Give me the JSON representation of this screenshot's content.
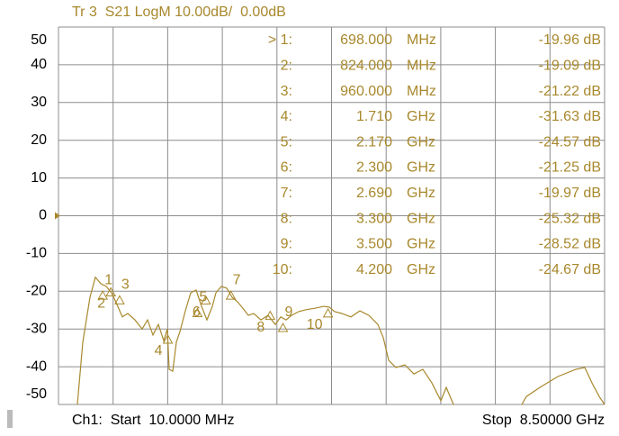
{
  "chart_data": {
    "type": "line",
    "title": "Tr 3  S21 LogM 10.00dB/  0.00dB",
    "x_start_label": "Ch1:  Start  10.0000 MHz",
    "x_stop_label": "Stop  8.50000 GHz",
    "xlim": [
      10,
      8500
    ],
    "ylim": [
      -50,
      50
    ],
    "yticks": [
      50,
      40,
      30,
      20,
      10,
      0,
      -10,
      -20,
      -30,
      -40,
      -50
    ],
    "grid": true,
    "trace": {
      "color": "#a8882c",
      "x": [
        304,
        388,
        500,
        583,
        667,
        751,
        835,
        919,
        1003,
        1087,
        1199,
        1311,
        1395,
        1479,
        1563,
        1646,
        1702,
        1730,
        1786,
        1842,
        1898,
        1982,
        2066,
        2150,
        2234,
        2318,
        2402,
        2458,
        2542,
        2626,
        2710,
        2793,
        2877,
        2961,
        3045,
        3157,
        3269,
        3381,
        3465,
        3549,
        3633,
        3745,
        3856,
        3996,
        4136,
        4220,
        4304,
        4416,
        4556,
        4696,
        4836,
        4975,
        5059,
        5143,
        5255,
        5395,
        5535,
        5675,
        5815,
        5954,
        6038,
        6150,
        null,
        7213,
        7283,
        7493,
        7773,
        8053,
        8192,
        8304,
        8416,
        8500
      ],
      "values": [
        -50,
        -33.5,
        -21.6,
        -16.3,
        -18.0,
        -18.7,
        -20.4,
        -23.5,
        -26.8,
        -25.9,
        -27.6,
        -30.0,
        -27.6,
        -31.6,
        -28.8,
        -33.1,
        -30.0,
        -40.7,
        -41.2,
        -33.5,
        -30.7,
        -25.2,
        -20.4,
        -19.7,
        -24.0,
        -27.6,
        -24.0,
        -20.4,
        -18.7,
        -19.2,
        -21.6,
        -22.8,
        -24.5,
        -26.4,
        -25.9,
        -27.6,
        -26.4,
        -28.8,
        -26.8,
        -27.6,
        -26.4,
        -25.4,
        -24.9,
        -24.5,
        -24.0,
        -24.2,
        -25.4,
        -25.9,
        -26.8,
        -25.2,
        -26.4,
        -28.8,
        -32.3,
        -38.3,
        -40.2,
        -39.5,
        -41.9,
        -40.7,
        -44.3,
        -49.0,
        -45.5,
        -50,
        null,
        -50,
        -47.9,
        -45.5,
        -42.6,
        -40.7,
        -40.2,
        -44.3,
        -47.9,
        -50
      ]
    },
    "markers": {
      "color": "#a8882c",
      "labels": [
        "1",
        "2",
        "3",
        "4",
        "5",
        "6",
        "7",
        "8",
        "9",
        "10"
      ],
      "table_labels": [
        "> 1:",
        "2:",
        "3:",
        "4:",
        "5:",
        "6:",
        "7:",
        "8:",
        "9:",
        "10:"
      ],
      "x": [
        698,
        824,
        960,
        1710,
        2170,
        2300,
        2690,
        3300,
        3500,
        4200
      ],
      "freq_labels": [
        "698.000",
        "824.000",
        "960.000",
        "1.710",
        "2.170",
        "2.300",
        "2.690",
        "3.300",
        "3.500",
        "4.200"
      ],
      "freq_units": [
        "MHz",
        "MHz",
        "MHz",
        "GHz",
        "GHz",
        "GHz",
        "GHz",
        "GHz",
        "GHz",
        "GHz"
      ],
      "values": [
        -19.96,
        -19.09,
        -21.22,
        -31.63,
        -24.57,
        -21.25,
        -19.97,
        -25.32,
        -28.52,
        -24.67
      ],
      "value_labels": [
        "-19.96 dB",
        "-19.09 dB",
        "-21.22 dB",
        "-31.63 dB",
        "-24.57 dB",
        "-21.25 dB",
        "-19.97 dB",
        "-25.32 dB",
        "-28.52 dB",
        "-24.67 dB"
      ]
    }
  }
}
